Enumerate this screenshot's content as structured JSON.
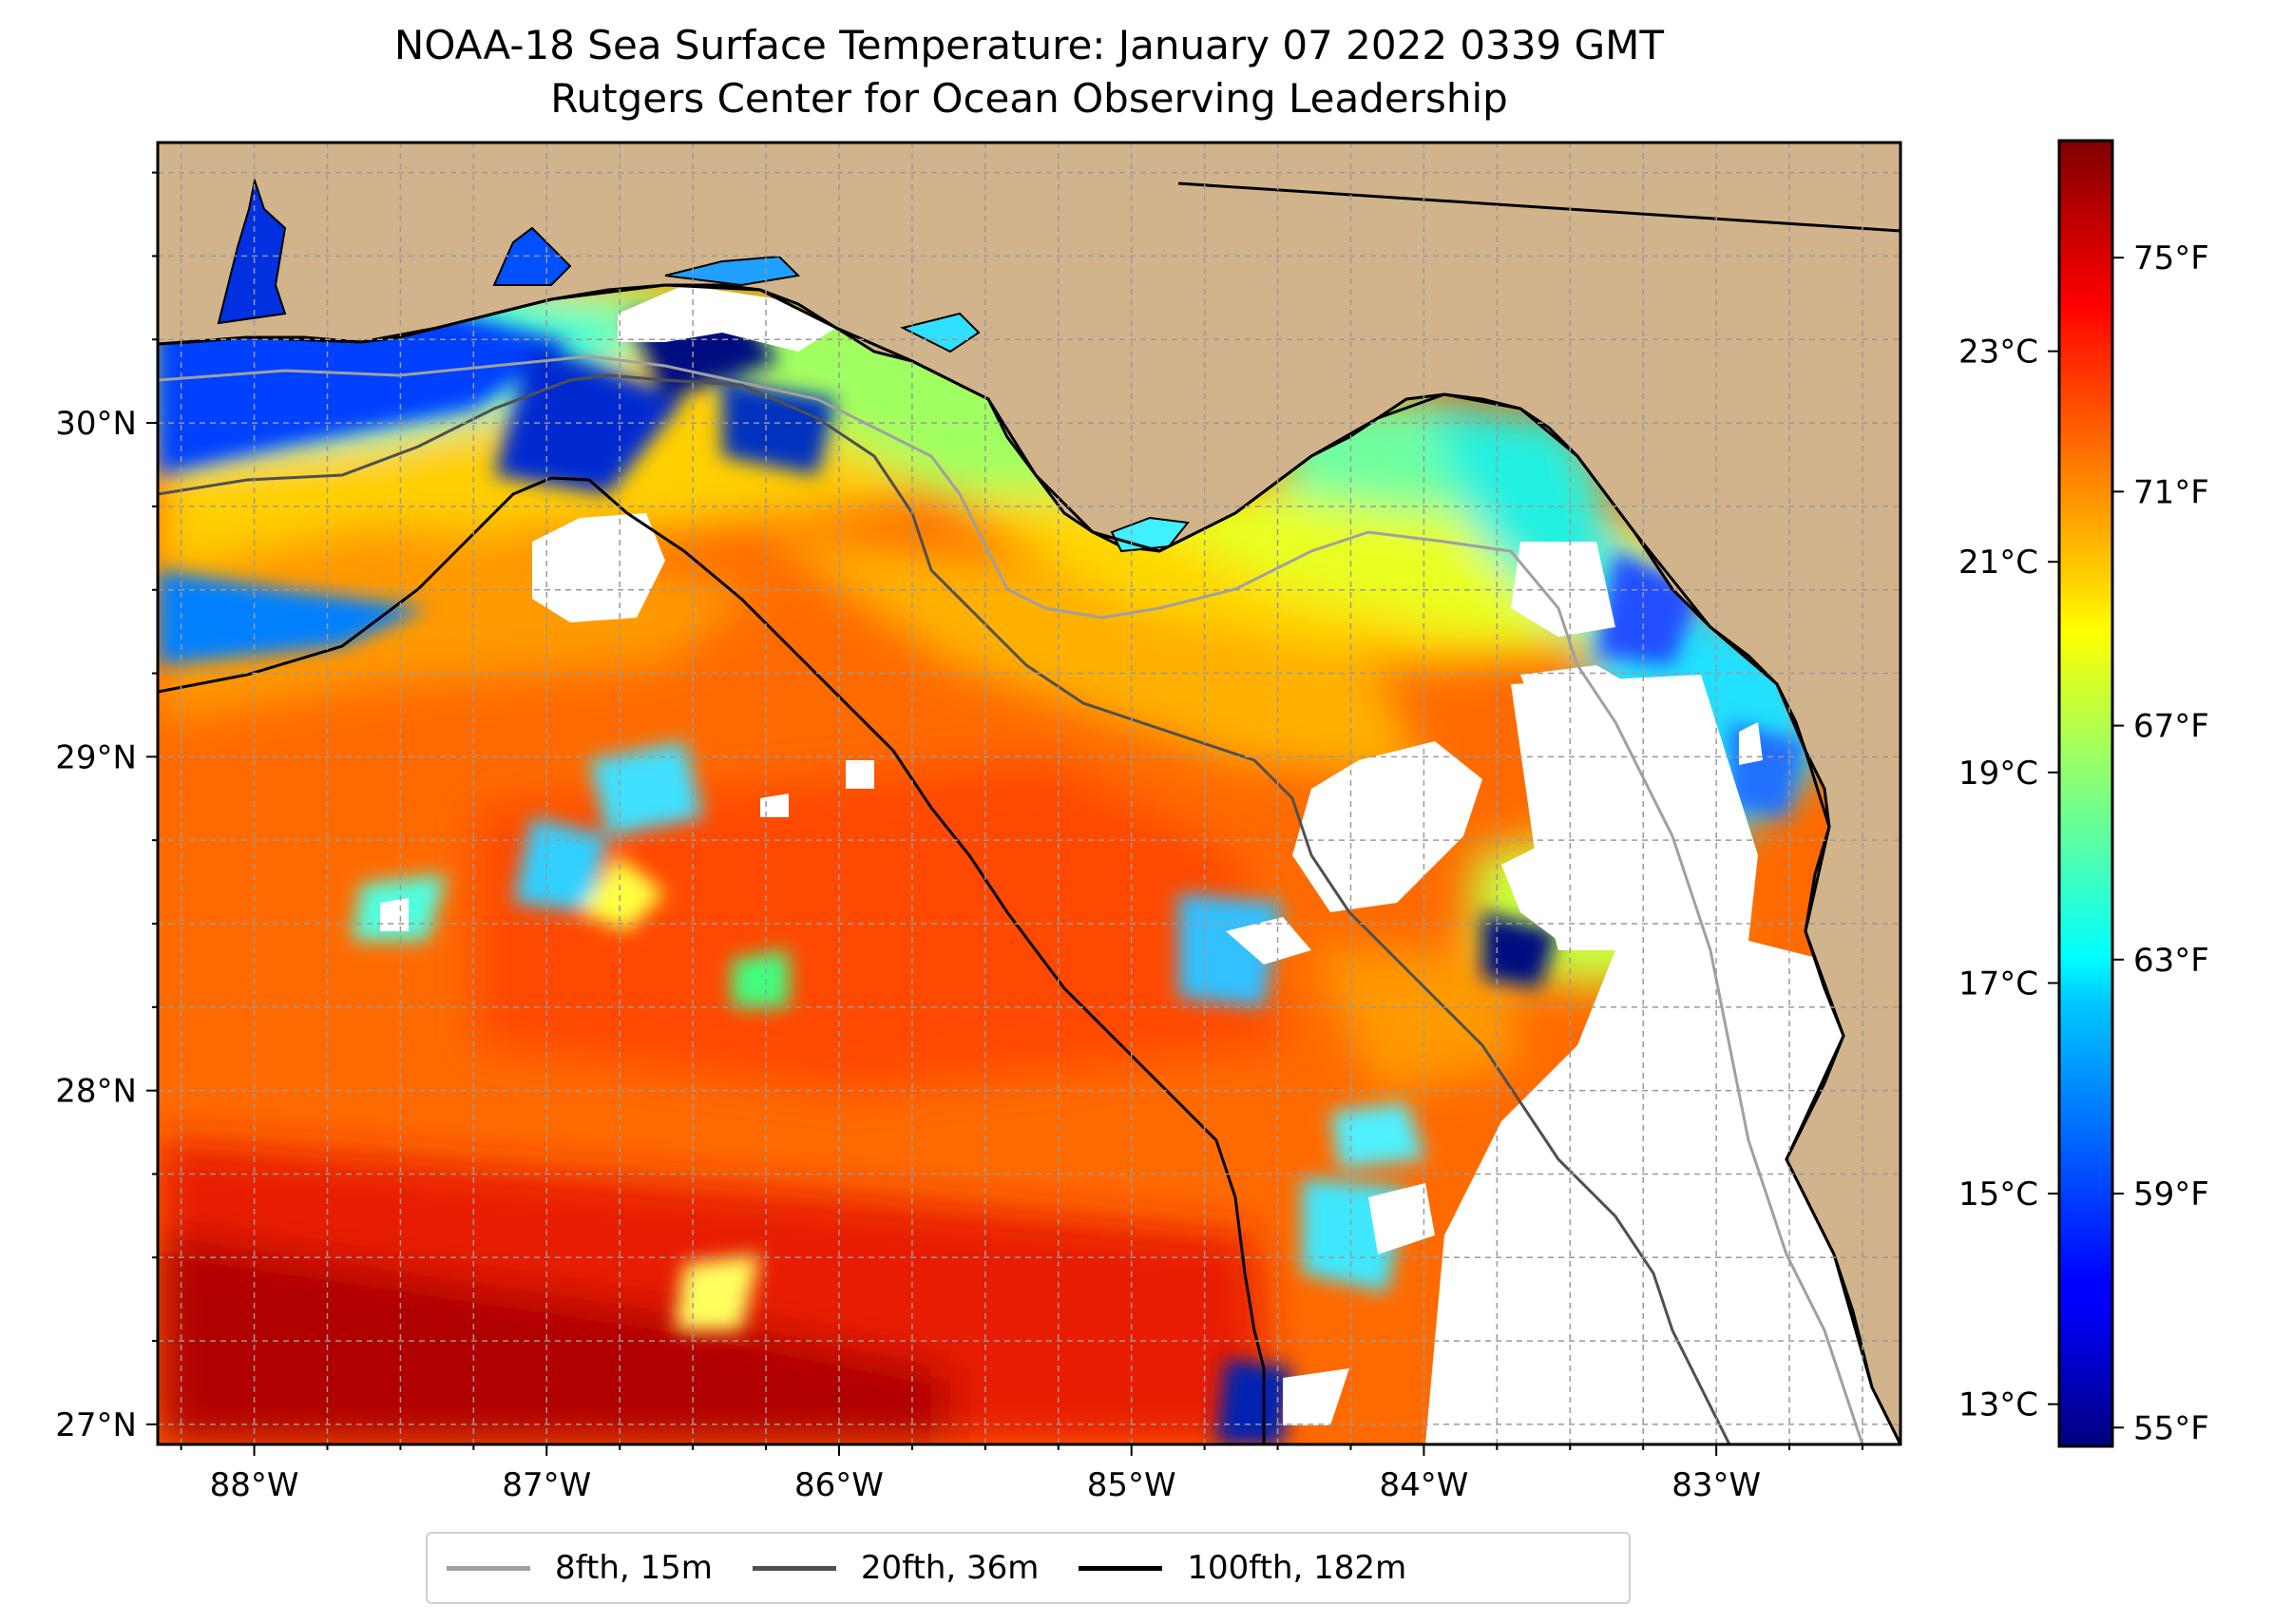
{
  "title": "NOAA-18 Sea Surface Temperature: January 07 2022 0339 GMT",
  "subtitle": "Rutgers Center for Ocean Observing Leadership",
  "map": {
    "lon_range": [
      -88.33,
      -82.37
    ],
    "lat_range": [
      26.94,
      30.84
    ],
    "lon_ticks": [
      {
        "value": -88,
        "label": "88°W"
      },
      {
        "value": -87,
        "label": "87°W"
      },
      {
        "value": -86,
        "label": "86°W"
      },
      {
        "value": -85,
        "label": "85°W"
      },
      {
        "value": -84,
        "label": "84°W"
      },
      {
        "value": -83,
        "label": "83°W"
      }
    ],
    "lat_ticks": [
      {
        "value": 30,
        "label": "30°N"
      },
      {
        "value": 29,
        "label": "29°N"
      },
      {
        "value": 28,
        "label": "28°N"
      },
      {
        "value": 27,
        "label": "27°N"
      }
    ],
    "colors": {
      "land": "#d2b48c",
      "no_data": "#ffffff",
      "gridline": "#9a9a9a",
      "coastline": "#000000",
      "lake": "#a6c0e3"
    }
  },
  "colorbar": {
    "colormap": "jet",
    "range_c": [
      12.6,
      25.0
    ],
    "celsius_ticks": [
      {
        "value": 13,
        "label": "13°C"
      },
      {
        "value": 15,
        "label": "15°C"
      },
      {
        "value": 17,
        "label": "17°C"
      },
      {
        "value": 19,
        "label": "19°C"
      },
      {
        "value": 21,
        "label": "21°C"
      },
      {
        "value": 23,
        "label": "23°C"
      }
    ],
    "fahrenheit_ticks": [
      {
        "value": 55,
        "label": "55°F"
      },
      {
        "value": 59,
        "label": "59°F"
      },
      {
        "value": 63,
        "label": "63°F"
      },
      {
        "value": 67,
        "label": "67°F"
      },
      {
        "value": 71,
        "label": "71°F"
      },
      {
        "value": 75,
        "label": "75°F"
      }
    ]
  },
  "legend": {
    "items": [
      {
        "label": "8fth, 15m",
        "color": "#a0a0a0"
      },
      {
        "label": "20fth, 36m",
        "color": "#505050"
      },
      {
        "label": "100fth, 182m",
        "color": "#000000"
      }
    ]
  }
}
